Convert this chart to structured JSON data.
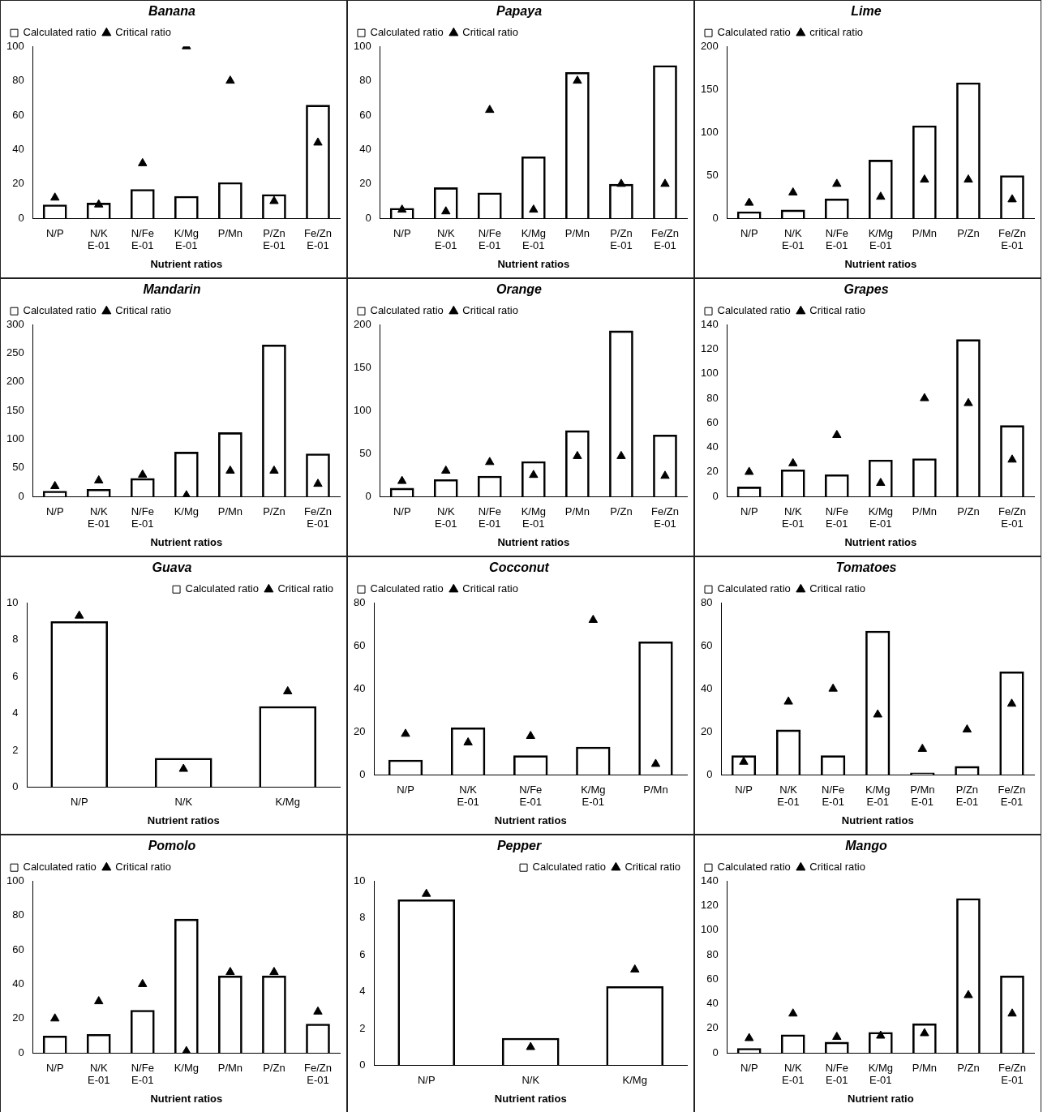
{
  "chart_data": [
    {
      "type": "bar",
      "title": "Banana",
      "xlabel": "Nutrient ratios",
      "categories": [
        "N/P",
        "N/K E-01",
        "N/Fe E-01",
        "K/Mg E-01",
        "P/Mn",
        "P/Zn E-01",
        "Fe/Zn E-01"
      ],
      "ylim": [
        0,
        100
      ],
      "yticks": [
        0,
        20,
        40,
        60,
        80,
        100
      ],
      "legend": "top left",
      "series": [
        {
          "name": "Calculated ratio",
          "type": "bar",
          "color": "#000000",
          "values": [
            8,
            9,
            17,
            13,
            21,
            14,
            66
          ]
        },
        {
          "name": "Critical ratio",
          "type": "scatter",
          "marker": "triangle",
          "color": "#000000",
          "x": [
            "N/P",
            "N/K E-01",
            "N/Fe E-01",
            "K/Mg E-01",
            "P/Mn",
            "P/Zn E-01",
            "Fe/Zn E-01"
          ],
          "values": [
            12,
            8,
            32,
            100,
            80,
            10,
            44
          ]
        }
      ]
    },
    {
      "type": "bar",
      "title": "Papaya",
      "xlabel": "Nutrient ratios",
      "categories": [
        "N/P",
        "N/K E-01",
        "N/Fe E-01",
        "K/Mg E-01",
        "P/Mn",
        "P/Zn E-01",
        "Fe/Zn E-01"
      ],
      "ylim": [
        0,
        100
      ],
      "yticks": [
        0,
        20,
        40,
        60,
        80,
        100
      ],
      "legend": "top left",
      "series": [
        {
          "name": "Calculated ratio",
          "type": "bar",
          "color": "#000000",
          "values": [
            6,
            18,
            15,
            36,
            85,
            20,
            89
          ]
        },
        {
          "name": "Critical ratio",
          "type": "scatter",
          "marker": "triangle",
          "color": "#000000",
          "x": [
            "N/P",
            "N/K E-01",
            "N/Fe E-01",
            "K/Mg E-01",
            "P/Mn",
            "P/Zn E-01",
            "Fe/Zn E-01"
          ],
          "values": [
            5,
            4,
            63,
            5,
            80,
            20,
            20
          ]
        }
      ]
    },
    {
      "type": "bar",
      "title": "Lime",
      "xlabel": "Nutrient ratios",
      "categories": [
        "N/P",
        "N/K E-01",
        "N/Fe E-01",
        "K/Mg E-01",
        "P/Mn",
        "P/Zn",
        "Fe/Zn E-01"
      ],
      "ylim": [
        0,
        200
      ],
      "yticks": [
        0,
        50,
        100,
        150,
        200
      ],
      "legend": "top left",
      "series": [
        {
          "name": "Calculated ratio",
          "type": "bar",
          "color": "#000000",
          "values": [
            8,
            10,
            23,
            68,
            108,
            158,
            50
          ]
        },
        {
          "name": "critical ratio",
          "type": "scatter",
          "marker": "triangle",
          "color": "#000000",
          "x": [
            "N/P",
            "N/K E-01",
            "N/Fe E-01",
            "K/Mg E-01",
            "P/Mn",
            "P/Zn",
            "Fe/Zn E-01"
          ],
          "values": [
            18,
            30,
            40,
            25,
            45,
            45,
            22
          ]
        }
      ]
    },
    {
      "type": "bar",
      "title": "Mandarin",
      "xlabel": "Nutrient ratios",
      "categories": [
        "N/P",
        "N/K E-01",
        "N/Fe E-01",
        "K/Mg",
        "P/Mn",
        "P/Zn",
        "Fe/Zn E-01"
      ],
      "ylim": [
        0,
        300
      ],
      "yticks": [
        0,
        50,
        100,
        150,
        200,
        250,
        300
      ],
      "legend": "top left",
      "series": [
        {
          "name": "Calculated ratio",
          "type": "bar",
          "color": "#000000",
          "values": [
            10,
            13,
            32,
            78,
            112,
            265,
            75
          ]
        },
        {
          "name": "Critical ratio",
          "type": "scatter",
          "marker": "triangle",
          "color": "#000000",
          "x": [
            "N/P",
            "N/K E-01",
            "N/Fe E-01",
            "K/Mg",
            "P/Mn",
            "P/Zn",
            "Fe/Zn E-01"
          ],
          "values": [
            18,
            28,
            38,
            2,
            45,
            45,
            22
          ]
        }
      ]
    },
    {
      "type": "bar",
      "title": "Orange",
      "xlabel": "Nutrient ratios",
      "categories": [
        "N/P",
        "N/K E-01",
        "N/Fe E-01",
        "K/Mg E-01",
        "P/Mn",
        "P/Zn",
        "Fe/Zn E-01"
      ],
      "ylim": [
        0,
        200
      ],
      "yticks": [
        0,
        50,
        100,
        150,
        200
      ],
      "legend": "top left",
      "series": [
        {
          "name": "Calculated ratio",
          "type": "bar",
          "color": "#000000",
          "values": [
            10,
            20,
            24,
            41,
            77,
            193,
            72
          ]
        },
        {
          "name": "Critical ratio",
          "type": "scatter",
          "marker": "triangle",
          "color": "#000000",
          "x": [
            "N/P",
            "N/K E-01",
            "N/Fe E-01",
            "K/Mg E-01",
            "P/Mn",
            "P/Zn",
            "Fe/Zn E-01"
          ],
          "values": [
            18,
            30,
            40,
            25,
            47,
            47,
            24
          ]
        }
      ]
    },
    {
      "type": "bar",
      "title": "Grapes",
      "xlabel": "Nutrient ratios",
      "categories": [
        "N/P",
        "N/K E-01",
        "N/Fe E-01",
        "K/Mg E-01",
        "P/Mn",
        "P/Zn",
        "Fe/Zn E-01"
      ],
      "ylim": [
        0,
        140
      ],
      "yticks": [
        0,
        20,
        40,
        60,
        80,
        100,
        120,
        140
      ],
      "legend": "top left",
      "series": [
        {
          "name": "Calculated ratio",
          "type": "bar",
          "color": "#000000",
          "values": [
            8,
            22,
            18,
            30,
            31,
            128,
            58
          ]
        },
        {
          "name": "Critical ratio",
          "type": "scatter",
          "marker": "triangle",
          "color": "#000000",
          "x": [
            "N/P",
            "N/K E-01",
            "N/Fe E-01",
            "K/Mg E-01",
            "P/Mn",
            "P/Zn",
            "Fe/Zn E-01"
          ],
          "values": [
            20,
            27,
            50,
            11,
            80,
            76,
            30
          ]
        }
      ]
    },
    {
      "type": "bar",
      "title": "Guava",
      "xlabel": "Nutrient ratios",
      "categories": [
        "N/P",
        "N/K",
        "K/Mg"
      ],
      "ylim": [
        0,
        10
      ],
      "yticks": [
        0,
        2,
        4,
        6,
        8,
        10
      ],
      "legend": "top right",
      "series": [
        {
          "name": "Calculated ratio",
          "type": "bar",
          "color": "#000000",
          "values": [
            9,
            1.6,
            4.4
          ]
        },
        {
          "name": "Critical ratio",
          "type": "scatter",
          "marker": "triangle",
          "color": "#000000",
          "x": [
            "N/P",
            "N/K",
            "K/Mg"
          ],
          "values": [
            9.3,
            1,
            5.2
          ]
        }
      ]
    },
    {
      "type": "bar",
      "title": "Cocconut",
      "xlabel": "Nutrient ratios",
      "categories": [
        "N/P",
        "N/K E-01",
        "N/Fe E-01",
        "K/Mg E-01",
        "P/Mn"
      ],
      "ylim": [
        0,
        80
      ],
      "yticks": [
        0,
        20,
        40,
        60,
        80
      ],
      "legend": "top left",
      "series": [
        {
          "name": "Calculated ratio",
          "type": "bar",
          "color": "#000000",
          "values": [
            7,
            22,
            9,
            13,
            62
          ]
        },
        {
          "name": "Critical ratio",
          "type": "scatter",
          "marker": "triangle",
          "color": "#000000",
          "x": [
            "N/P",
            "N/K E-01",
            "N/Fe E-01",
            "K/Mg E-01",
            "P/Mn"
          ],
          "values": [
            19,
            15,
            18,
            72,
            5
          ]
        }
      ]
    },
    {
      "type": "bar",
      "title": "Tomatoes",
      "xlabel": "Nutrient ratios",
      "categories": [
        "N/P",
        "N/K E-01",
        "N/Fe E-01",
        "K/Mg E-01",
        "P/Mn E-01",
        "P/Zn E-01",
        "Fe/Zn E-01"
      ],
      "ylim": [
        0,
        80
      ],
      "yticks": [
        0,
        20,
        40,
        60,
        80
      ],
      "legend": "top left",
      "series": [
        {
          "name": "Calculated ratio",
          "type": "bar",
          "color": "#000000",
          "values": [
            9,
            21,
            9,
            67,
            1,
            4,
            48
          ]
        },
        {
          "name": "Critical ratio",
          "type": "scatter",
          "marker": "triangle",
          "color": "#000000",
          "x": [
            "N/P",
            "N/K E-01",
            "N/Fe E-01",
            "K/Mg E-01",
            "P/Mn E-01",
            "P/Zn E-01",
            "Fe/Zn E-01"
          ],
          "values": [
            6,
            34,
            40,
            28,
            12,
            21,
            33
          ]
        }
      ]
    },
    {
      "type": "bar",
      "title": "Pomolo",
      "xlabel": "Nutrient ratios",
      "categories": [
        "N/P",
        "N/K E-01",
        "N/Fe E-01",
        "K/Mg",
        "P/Mn",
        "P/Zn",
        "Fe/Zn E-01"
      ],
      "ylim": [
        0,
        100
      ],
      "yticks": [
        0,
        20,
        40,
        60,
        80,
        100
      ],
      "legend": "top left",
      "series": [
        {
          "name": "Calculated ratio",
          "type": "bar",
          "color": "#000000",
          "values": [
            10,
            11,
            25,
            78,
            45,
            45,
            17
          ]
        },
        {
          "name": "Critical ratio",
          "type": "scatter",
          "marker": "triangle",
          "color": "#000000",
          "x": [
            "N/P",
            "N/K E-01",
            "N/Fe E-01",
            "K/Mg",
            "P/Mn",
            "P/Zn",
            "Fe/Zn E-01"
          ],
          "values": [
            20,
            30,
            40,
            1,
            47,
            47,
            24
          ]
        }
      ]
    },
    {
      "type": "bar",
      "title": "Pepper",
      "xlabel": "Nutrient ratios",
      "categories": [
        "N/P",
        "N/K",
        "K/Mg"
      ],
      "ylim": [
        0,
        10
      ],
      "yticks": [
        0,
        2,
        4,
        6,
        8,
        10
      ],
      "legend": "top right",
      "series": [
        {
          "name": "Calculated ratio",
          "type": "bar",
          "color": "#000000",
          "values": [
            9,
            1.5,
            4.3
          ]
        },
        {
          "name": "Critical ratio",
          "type": "scatter",
          "marker": "triangle",
          "color": "#000000",
          "x": [
            "N/P",
            "N/K",
            "K/Mg"
          ],
          "values": [
            9.3,
            1,
            5.2
          ]
        }
      ]
    },
    {
      "type": "bar",
      "title": "Mango",
      "xlabel": "Nutrient ratio",
      "categories": [
        "N/P",
        "N/K E-01",
        "N/Fe E-01",
        "K/Mg E-01",
        "P/Mn",
        "P/Zn",
        "Fe/Zn E-01"
      ],
      "ylim": [
        0,
        140
      ],
      "yticks": [
        0,
        20,
        40,
        60,
        80,
        100,
        120,
        140
      ],
      "legend": "top left",
      "series": [
        {
          "name": "Calculated ratio",
          "type": "bar",
          "color": "#000000",
          "values": [
            4,
            15,
            9,
            17,
            24,
            126,
            63
          ]
        },
        {
          "name": "Critical ratio",
          "type": "scatter",
          "marker": "triangle",
          "color": "#000000",
          "x": [
            "N/P",
            "N/K E-01",
            "N/Fe E-01",
            "K/Mg E-01",
            "P/Mn",
            "P/Zn",
            "Fe/Zn E-01"
          ],
          "values": [
            12,
            32,
            13,
            14,
            16,
            47,
            32
          ]
        }
      ]
    }
  ]
}
